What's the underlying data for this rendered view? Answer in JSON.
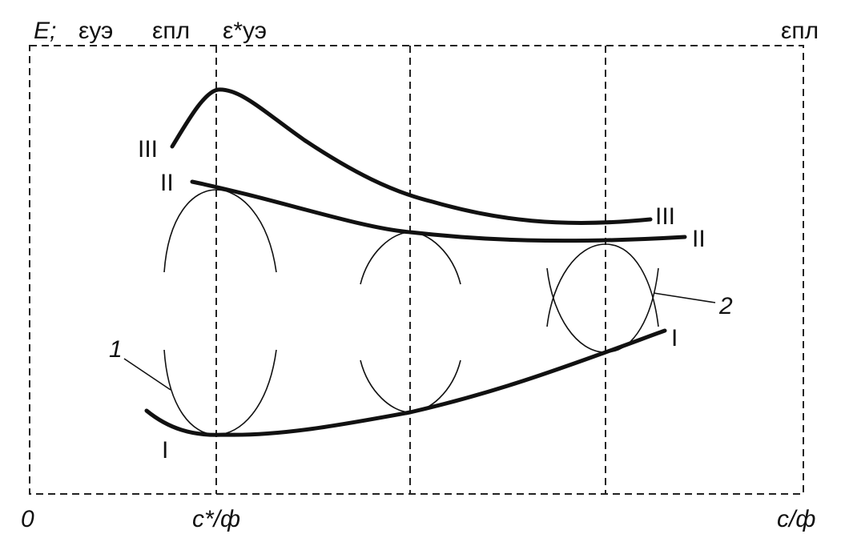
{
  "axis_labels": {
    "y_symbol": "E;",
    "top_left_1": "εуэ",
    "top_left_2": "εпл",
    "top_left_3": "ε*уэ",
    "top_right": "εпл",
    "origin": "0",
    "x_marker": "c*/ф",
    "x_axis": "c/ф"
  },
  "curve_labels": {
    "left_III": "III",
    "left_II": "II",
    "left_I": "I",
    "right_III": "III",
    "right_II": "II",
    "right_I": "I"
  },
  "callouts": {
    "one": "1",
    "two": "2"
  }
}
